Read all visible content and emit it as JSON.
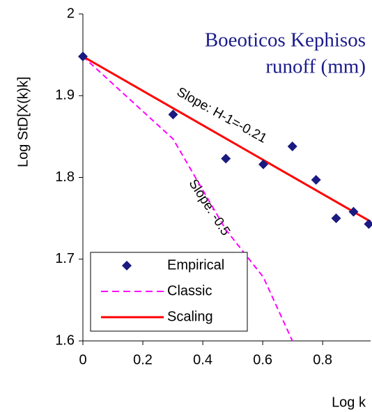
{
  "chart_data": {
    "type": "scatter",
    "title": [
      "Boeoticos Kephisos",
      "runoff (mm)"
    ],
    "x_label": "Log k",
    "y_label": "Log StD[X(k)k]",
    "annotations": [
      "Slope: H-1=-0.21",
      "Slope: -0.5"
    ],
    "xlim": [
      0,
      0.96
    ],
    "ylim": [
      1.6,
      2
    ],
    "xticks": [
      0,
      0.2,
      0.4,
      0.6,
      0.8
    ],
    "yticks": [
      1.6,
      1.7,
      1.8,
      1.9,
      2
    ],
    "grid": false,
    "legend": "lower left",
    "series": [
      {
        "name": "Empirical",
        "type": "scatter",
        "color": "#1a1a80",
        "x": [
          0,
          0.301,
          0.477,
          0.602,
          0.699,
          0.778,
          0.845,
          0.903,
          0.954
        ],
        "values": [
          1.948,
          1.877,
          1.823,
          1.816,
          1.838,
          1.797,
          1.75,
          1.758,
          1.743
        ]
      },
      {
        "name": "Classic",
        "type": "line",
        "style": "dashed",
        "color": "#ff00ff",
        "x": [
          0,
          0.301,
          0.477,
          0.602,
          0.699
        ],
        "values": [
          1.948,
          1.847,
          1.736,
          1.678,
          1.6
        ]
      },
      {
        "name": "Scaling",
        "type": "line",
        "style": "solid",
        "color": "#ff0000",
        "x": [
          0,
          0.96
        ],
        "values": [
          1.948,
          1.746
        ]
      }
    ]
  }
}
